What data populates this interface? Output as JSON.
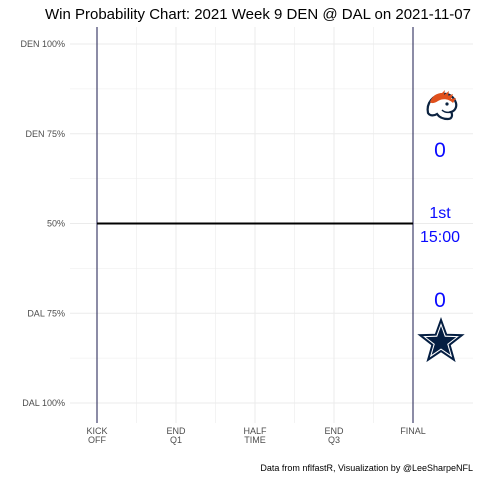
{
  "chart_data": {
    "type": "line",
    "title": "Win Probability Chart: 2021 Week 9 DEN @ DAL on 2021-11-07",
    "caption": "Data from nflfastR, Visualization by @LeeSharpeNFL",
    "y_tick_labels": [
      "DEN 100%",
      "DEN 75%",
      "50%",
      "DAL 75%",
      "DAL 100%"
    ],
    "y_tick_values": [
      1.0,
      0.75,
      0.5,
      0.25,
      0.0
    ],
    "ylim": [
      0,
      1
    ],
    "x_tick_labels": [
      [
        "KICK",
        "OFF"
      ],
      [
        "END",
        "Q1"
      ],
      [
        "HALF",
        "TIME"
      ],
      [
        "END",
        "Q3"
      ],
      [
        "FINAL"
      ]
    ],
    "x_tick_values": [
      0,
      900,
      1800,
      2700,
      3600
    ],
    "xlim": [
      0,
      3600
    ],
    "grid": true,
    "series": [
      {
        "x": [
          0,
          3600
        ],
        "values": [
          0.5,
          0.5
        ],
        "color": "#000000"
      }
    ],
    "teams": {
      "away": {
        "abbr": "DEN",
        "score": "0",
        "color": "#0a0aff",
        "logo": "broncos-logo-icon"
      },
      "home": {
        "abbr": "DAL",
        "score": "0",
        "color": "#0a0aff",
        "logo": "cowboys-star-logo-icon"
      }
    },
    "game_clock": {
      "quarter": "1st",
      "time": "15:00",
      "color": "#0a0aff"
    },
    "colors": {
      "grid": "#ebebeb",
      "vertical_marker": "#1a1a4d",
      "wp_line": "#000000",
      "broncos_orange": "#e0501c",
      "broncos_navy": "#0c2340",
      "cowboys_navy": "#041e42"
    }
  }
}
